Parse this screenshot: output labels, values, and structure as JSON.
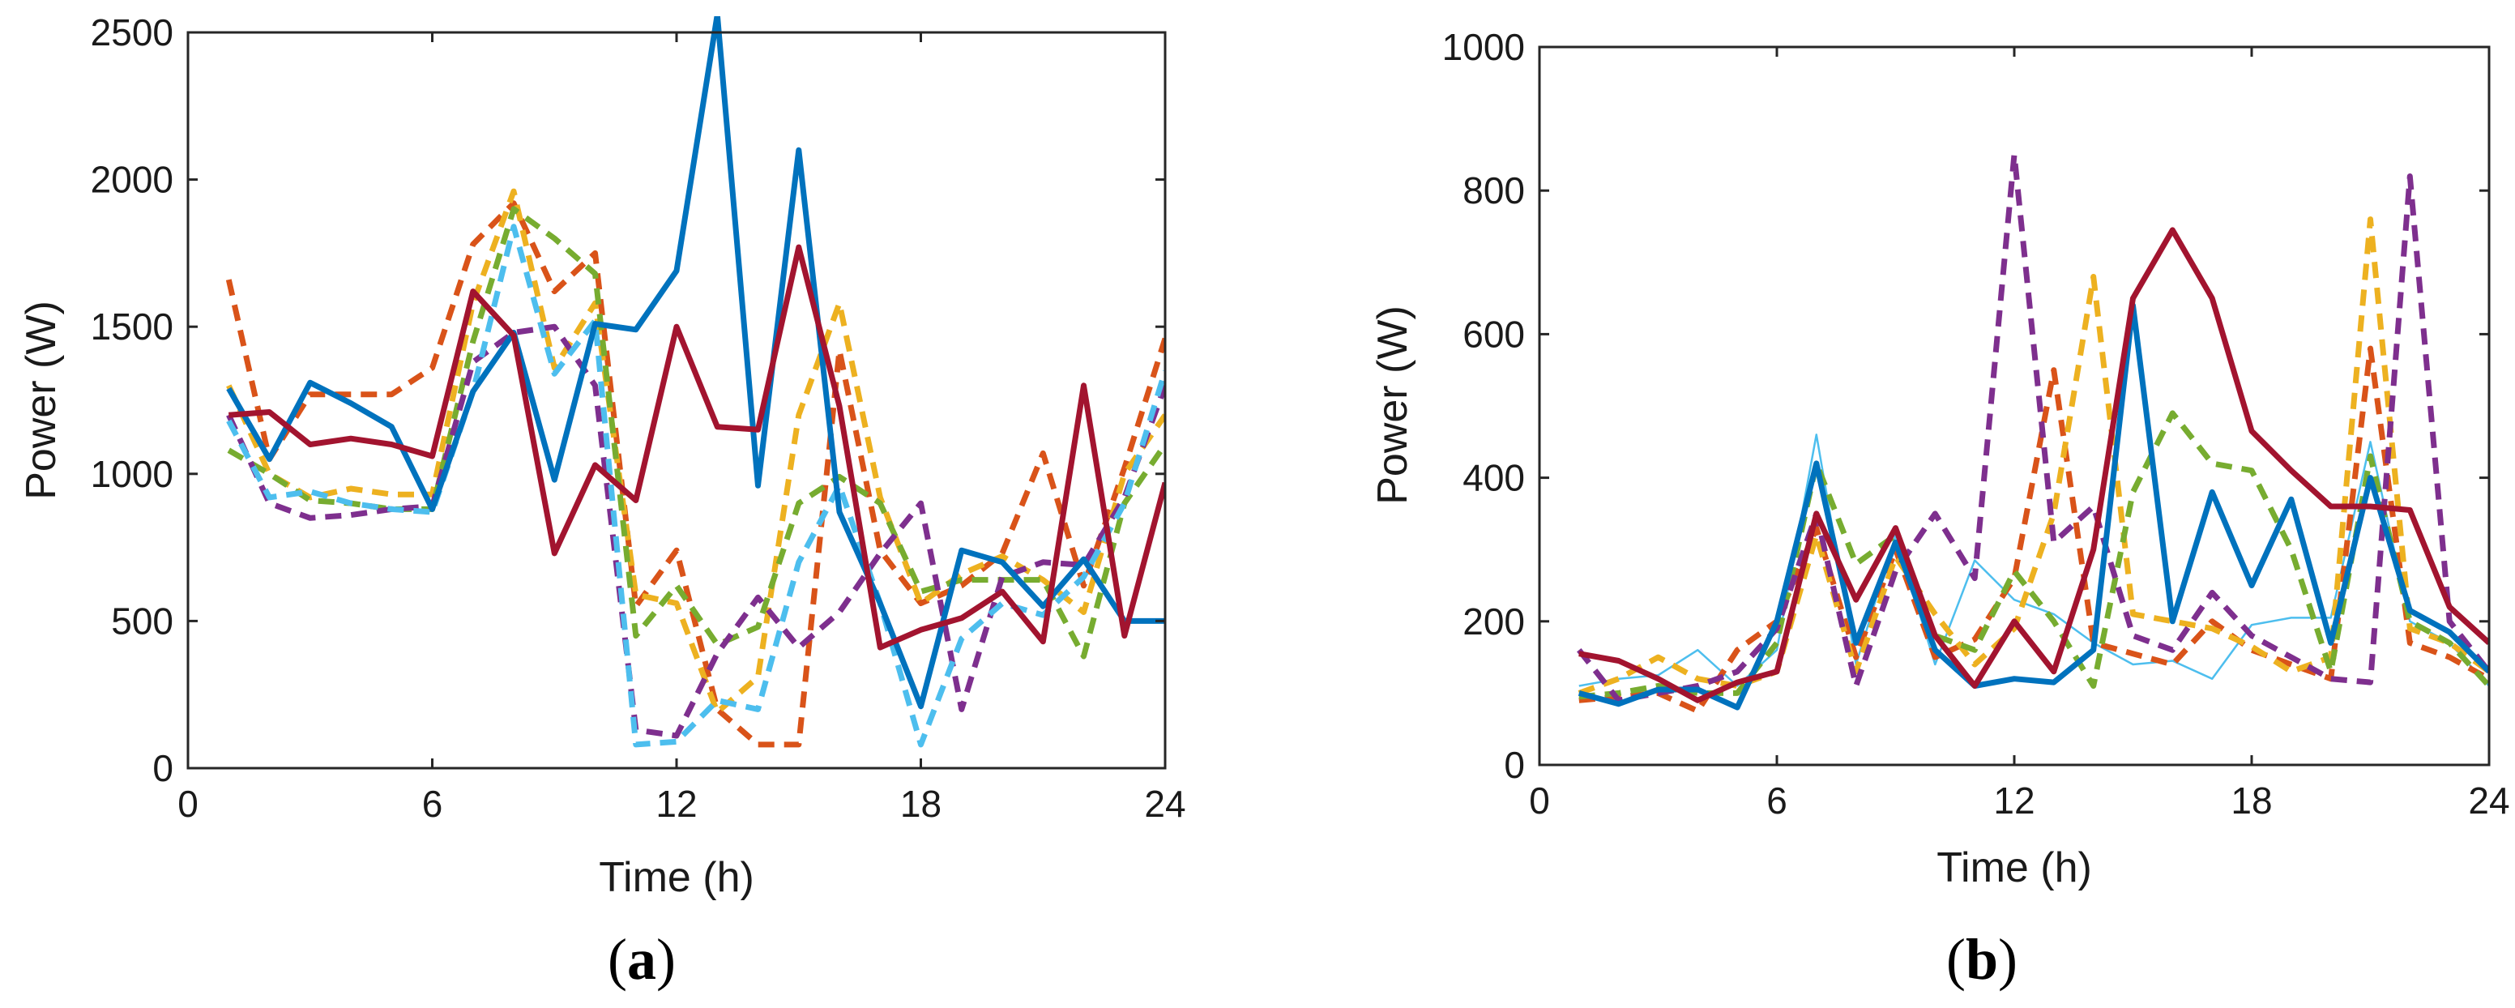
{
  "chart_data": [
    {
      "type": "line",
      "panel": "(a)",
      "caption_letter": "a",
      "xlabel": "Time (h)",
      "ylabel": "Power (W)",
      "xlim": [
        0,
        24
      ],
      "ylim": [
        0,
        2500
      ],
      "xticks": [
        0,
        6,
        12,
        18,
        24
      ],
      "yticks": [
        0,
        500,
        1000,
        1500,
        2000,
        2500
      ],
      "grid": false,
      "series": [
        {
          "name": "dashed-orange",
          "color": "#D95319",
          "style": "dashed",
          "width": "thick",
          "x": [
            1,
            2,
            3,
            4,
            5,
            6,
            7,
            8,
            9,
            10,
            11,
            12,
            13,
            14,
            15,
            16,
            17,
            18,
            19,
            20,
            21,
            22,
            23,
            24
          ],
          "y": [
            1660,
            1050,
            1270,
            1270,
            1270,
            1360,
            1780,
            1920,
            1620,
            1750,
            550,
            740,
            200,
            80,
            80,
            1420,
            740,
            560,
            620,
            730,
            1070,
            620,
            1020,
            1460
          ]
        },
        {
          "name": "dashed-yellow",
          "color": "#EDB120",
          "style": "dashed",
          "width": "thick",
          "x": [
            1,
            2,
            3,
            4,
            5,
            6,
            7,
            8,
            9,
            10,
            11,
            12,
            13,
            14,
            15,
            16,
            17,
            18,
            19,
            20,
            21,
            22,
            23,
            24
          ],
          "y": [
            1300,
            1000,
            920,
            950,
            930,
            930,
            1580,
            1960,
            1360,
            1580,
            590,
            560,
            190,
            310,
            1200,
            1580,
            920,
            560,
            660,
            720,
            640,
            530,
            1000,
            1200
          ]
        },
        {
          "name": "dashed-green",
          "color": "#77AC30",
          "style": "dashed",
          "width": "thick",
          "x": [
            1,
            2,
            3,
            4,
            5,
            6,
            7,
            8,
            9,
            10,
            11,
            12,
            13,
            14,
            15,
            16,
            17,
            18,
            19,
            20,
            21,
            22,
            23,
            24
          ],
          "y": [
            1080,
            1000,
            910,
            900,
            880,
            880,
            1450,
            1900,
            1800,
            1680,
            450,
            620,
            420,
            480,
            900,
            990,
            900,
            600,
            640,
            640,
            640,
            380,
            900,
            1100
          ]
        },
        {
          "name": "dashed-purple",
          "color": "#7E2F8E",
          "style": "dashed",
          "width": "thick",
          "x": [
            1,
            2,
            3,
            4,
            5,
            6,
            7,
            8,
            9,
            10,
            11,
            12,
            13,
            14,
            15,
            16,
            17,
            18,
            19,
            20,
            21,
            22,
            23,
            24
          ],
          "y": [
            1200,
            900,
            850,
            860,
            880,
            890,
            1380,
            1480,
            1500,
            1300,
            130,
            110,
            390,
            580,
            410,
            530,
            730,
            900,
            200,
            650,
            700,
            690,
            920,
            1300
          ]
        },
        {
          "name": "dashed-lightblue",
          "color": "#4DBEEE",
          "style": "dashed",
          "width": "thick",
          "x": [
            1,
            2,
            3,
            4,
            5,
            6,
            7,
            8,
            9,
            10,
            11,
            12,
            13,
            14,
            15,
            16,
            17,
            18,
            19,
            20,
            21,
            22,
            23,
            24
          ],
          "y": [
            1180,
            920,
            940,
            900,
            880,
            870,
            1280,
            1840,
            1340,
            1520,
            80,
            90,
            230,
            200,
            700,
            960,
            560,
            80,
            440,
            560,
            520,
            650,
            900,
            1350
          ]
        },
        {
          "name": "solid-blue",
          "color": "#0072BD",
          "style": "solid",
          "width": "thick",
          "x": [
            1,
            2,
            3,
            4,
            5,
            6,
            7,
            8,
            9,
            10,
            11,
            12,
            13,
            14,
            15,
            16,
            17,
            18,
            19,
            20,
            21,
            22,
            23,
            24
          ],
          "y": [
            1290,
            1050,
            1310,
            1240,
            1160,
            880,
            1280,
            1480,
            980,
            1510,
            1490,
            1690,
            2560,
            960,
            2100,
            870,
            560,
            210,
            740,
            700,
            550,
            710,
            500,
            500
          ]
        },
        {
          "name": "solid-red",
          "color": "#A2142F",
          "style": "solid",
          "width": "thick",
          "x": [
            1,
            2,
            3,
            4,
            5,
            6,
            7,
            8,
            9,
            10,
            11,
            12,
            13,
            14,
            15,
            16,
            17,
            18,
            19,
            20,
            21,
            22,
            23,
            24
          ],
          "y": [
            1200,
            1210,
            1100,
            1120,
            1100,
            1060,
            1620,
            1470,
            730,
            1030,
            910,
            1500,
            1160,
            1150,
            1770,
            1230,
            410,
            470,
            510,
            600,
            430,
            1300,
            450,
            970
          ]
        }
      ]
    },
    {
      "type": "line",
      "panel": "(b)",
      "caption_letter": "b",
      "xlabel": "Time (h)",
      "ylabel": "Power (W)",
      "xlim": [
        0,
        24
      ],
      "ylim": [
        0,
        1000
      ],
      "xticks": [
        0,
        6,
        12,
        18,
        24
      ],
      "yticks": [
        0,
        200,
        400,
        600,
        800,
        1000
      ],
      "grid": false,
      "series": [
        {
          "name": "thin-lightblue",
          "color": "#4DBEEE",
          "style": "solid",
          "width": "thin",
          "x": [
            1,
            2,
            3,
            4,
            5,
            6,
            7,
            8,
            9,
            10,
            11,
            12,
            13,
            14,
            15,
            16,
            17,
            18,
            19,
            20,
            21,
            22,
            23,
            24
          ],
          "y": [
            110,
            120,
            125,
            160,
            110,
            160,
            460,
            140,
            320,
            140,
            285,
            230,
            210,
            170,
            140,
            145,
            120,
            195,
            205,
            205,
            450,
            200,
            170,
            110
          ]
        },
        {
          "name": "dashed-orange",
          "color": "#D95319",
          "style": "dashed",
          "width": "thick",
          "x": [
            1,
            2,
            3,
            4,
            5,
            6,
            7,
            8,
            9,
            10,
            11,
            12,
            13,
            14,
            15,
            16,
            17,
            18,
            19,
            20,
            21,
            22,
            23,
            24
          ],
          "y": [
            90,
            95,
            100,
            75,
            160,
            200,
            330,
            150,
            300,
            150,
            175,
            260,
            550,
            170,
            155,
            140,
            200,
            160,
            140,
            120,
            580,
            170,
            150,
            120
          ]
        },
        {
          "name": "dashed-yellow",
          "color": "#EDB120",
          "style": "dashed",
          "width": "thick",
          "x": [
            1,
            2,
            3,
            4,
            5,
            6,
            7,
            8,
            9,
            10,
            11,
            12,
            13,
            14,
            15,
            16,
            17,
            18,
            19,
            20,
            21,
            22,
            23,
            24
          ],
          "y": [
            100,
            120,
            150,
            120,
            110,
            130,
            320,
            130,
            290,
            210,
            140,
            190,
            350,
            680,
            210,
            200,
            190,
            165,
            130,
            150,
            760,
            190,
            170,
            130
          ]
        },
        {
          "name": "dashed-green",
          "color": "#77AC30",
          "style": "dashed",
          "width": "thick",
          "x": [
            1,
            2,
            3,
            4,
            5,
            6,
            7,
            8,
            9,
            10,
            11,
            12,
            13,
            14,
            15,
            16,
            17,
            18,
            19,
            20,
            21,
            22,
            23,
            24
          ],
          "y": [
            95,
            100,
            110,
            100,
            100,
            170,
            420,
            280,
            320,
            180,
            160,
            270,
            200,
            110,
            380,
            490,
            420,
            410,
            300,
            130,
            430,
            200,
            170,
            110
          ]
        },
        {
          "name": "dashed-purple",
          "color": "#7E2F8E",
          "style": "dashed",
          "width": "thick",
          "x": [
            1,
            2,
            3,
            4,
            5,
            6,
            7,
            8,
            9,
            10,
            11,
            12,
            13,
            14,
            15,
            16,
            17,
            18,
            19,
            20,
            21,
            22,
            23,
            24
          ],
          "y": [
            160,
            90,
            100,
            110,
            130,
            190,
            350,
            110,
            270,
            350,
            260,
            850,
            310,
            360,
            180,
            160,
            240,
            180,
            150,
            120,
            115,
            820,
            200,
            130
          ]
        },
        {
          "name": "solid-blue",
          "color": "#0072BD",
          "style": "solid",
          "width": "thick",
          "x": [
            1,
            2,
            3,
            4,
            5,
            6,
            7,
            8,
            9,
            10,
            11,
            12,
            13,
            14,
            15,
            16,
            17,
            18,
            19,
            20,
            21,
            22,
            23,
            24
          ],
          "y": [
            100,
            85,
            105,
            105,
            80,
            200,
            420,
            170,
            310,
            160,
            110,
            120,
            115,
            160,
            640,
            200,
            380,
            250,
            370,
            170,
            400,
            215,
            185,
            130
          ]
        },
        {
          "name": "solid-red",
          "color": "#A2142F",
          "style": "solid",
          "width": "thick",
          "x": [
            1,
            2,
            3,
            4,
            5,
            6,
            7,
            8,
            9,
            10,
            11,
            12,
            13,
            14,
            15,
            16,
            17,
            18,
            19,
            20,
            21,
            22,
            23,
            24
          ],
          "y": [
            155,
            145,
            120,
            90,
            115,
            130,
            350,
            230,
            330,
            180,
            110,
            200,
            130,
            300,
            650,
            745,
            650,
            465,
            410,
            360,
            360,
            355,
            220,
            170
          ]
        }
      ]
    }
  ]
}
